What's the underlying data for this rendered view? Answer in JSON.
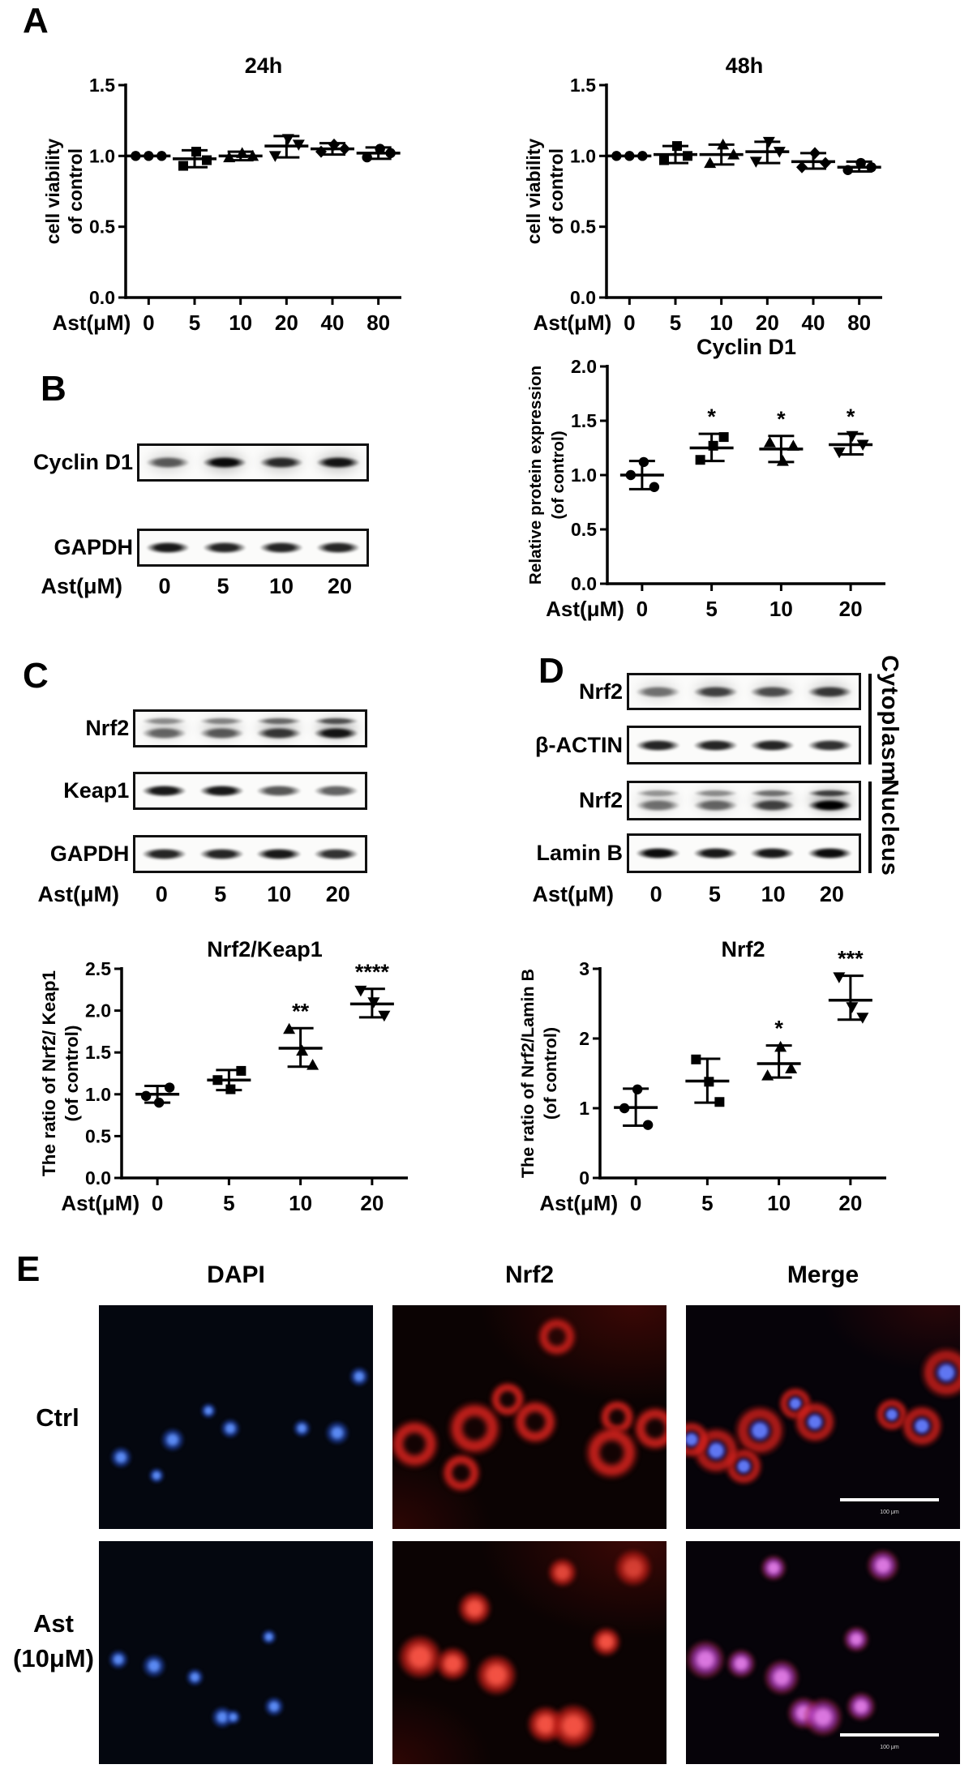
{
  "panels": {
    "a": "A",
    "b": "B",
    "c": "C",
    "d": "D",
    "e": "E"
  },
  "chart_data": [
    {
      "id": "viability-24h",
      "type": "scatter",
      "title": "24h",
      "ylabel_lines": [
        "cell viability",
        "of control"
      ],
      "x_prefix": "Ast(μM)",
      "categories": [
        "0",
        "5",
        "10",
        "20",
        "40",
        "80"
      ],
      "ylim": [
        0,
        1.5
      ],
      "yticks": [
        "0.0",
        "0.5",
        "1.0",
        "1.5"
      ],
      "grid": false,
      "legend": "none",
      "groups": [
        {
          "label": "0",
          "marker": "circle",
          "points": [
            1.0,
            1.0,
            1.0
          ],
          "mean": 1.0,
          "lo": 1.0,
          "hi": 1.0,
          "sig": ""
        },
        {
          "label": "5",
          "marker": "square",
          "points": [
            0.93,
            1.03,
            0.97
          ],
          "mean": 0.98,
          "lo": 0.92,
          "hi": 1.04,
          "sig": ""
        },
        {
          "label": "10",
          "marker": "triangle-up",
          "points": [
            0.99,
            1.02,
            1.0
          ],
          "mean": 1.0,
          "lo": 0.97,
          "hi": 1.03,
          "sig": ""
        },
        {
          "label": "20",
          "marker": "triangle-down",
          "points": [
            1.0,
            1.12,
            1.08
          ],
          "mean": 1.07,
          "lo": 0.99,
          "hi": 1.14,
          "sig": ""
        },
        {
          "label": "40",
          "marker": "diamond",
          "points": [
            1.03,
            1.08,
            1.05
          ],
          "mean": 1.05,
          "lo": 1.01,
          "hi": 1.09,
          "sig": ""
        },
        {
          "label": "80",
          "marker": "circle",
          "points": [
            0.99,
            1.05,
            1.02
          ],
          "mean": 1.02,
          "lo": 0.98,
          "hi": 1.06,
          "sig": ""
        }
      ]
    },
    {
      "id": "viability-48h",
      "type": "scatter",
      "title": "48h",
      "ylabel_lines": [
        "cell viability",
        "of control"
      ],
      "x_prefix": "Ast(μM)",
      "categories": [
        "0",
        "5",
        "10",
        "20",
        "40",
        "80"
      ],
      "ylim": [
        0,
        1.5
      ],
      "yticks": [
        "0.0",
        "0.5",
        "1.0",
        "1.5"
      ],
      "grid": false,
      "legend": "none",
      "groups": [
        {
          "label": "0",
          "marker": "circle",
          "points": [
            1.0,
            1.0,
            1.0
          ],
          "mean": 1.0,
          "lo": 1.0,
          "hi": 1.0,
          "sig": ""
        },
        {
          "label": "5",
          "marker": "square",
          "points": [
            0.97,
            1.07,
            1.0
          ],
          "mean": 1.01,
          "lo": 0.95,
          "hi": 1.07,
          "sig": ""
        },
        {
          "label": "10",
          "marker": "triangle-up",
          "points": [
            0.95,
            1.08,
            1.01
          ],
          "mean": 1.01,
          "lo": 0.94,
          "hi": 1.08,
          "sig": ""
        },
        {
          "label": "20",
          "marker": "triangle-down",
          "points": [
            0.96,
            1.1,
            1.03
          ],
          "mean": 1.03,
          "lo": 0.95,
          "hi": 1.1,
          "sig": ""
        },
        {
          "label": "40",
          "marker": "diamond",
          "points": [
            0.92,
            1.02,
            0.95
          ],
          "mean": 0.96,
          "lo": 0.91,
          "hi": 1.02,
          "sig": ""
        },
        {
          "label": "80",
          "marker": "circle",
          "points": [
            0.9,
            0.95,
            0.92
          ],
          "mean": 0.92,
          "lo": 0.89,
          "hi": 0.96,
          "sig": ""
        }
      ]
    },
    {
      "id": "cyclin-d1",
      "type": "scatter",
      "title": "Cyclin D1",
      "ylabel_lines": [
        "Relative protein expression",
        "(of control)"
      ],
      "x_prefix": "Ast(μM)",
      "categories": [
        "0",
        "5",
        "10",
        "20"
      ],
      "ylim": [
        0,
        2.0
      ],
      "yticks": [
        "0.0",
        "0.5",
        "1.0",
        "1.5",
        "2.0"
      ],
      "grid": false,
      "legend": "none",
      "groups": [
        {
          "label": "0",
          "marker": "circle",
          "points": [
            1.0,
            1.12,
            0.89
          ],
          "mean": 1.0,
          "lo": 0.87,
          "hi": 1.13,
          "sig": ""
        },
        {
          "label": "5",
          "marker": "square",
          "points": [
            1.14,
            1.27,
            1.35
          ],
          "mean": 1.25,
          "lo": 1.13,
          "hi": 1.38,
          "sig": "*"
        },
        {
          "label": "10",
          "marker": "triangle-up",
          "points": [
            1.3,
            1.13,
            1.27
          ],
          "mean": 1.24,
          "lo": 1.12,
          "hi": 1.36,
          "sig": "*"
        },
        {
          "label": "20",
          "marker": "triangle-down",
          "points": [
            1.21,
            1.36,
            1.28
          ],
          "mean": 1.28,
          "lo": 1.19,
          "hi": 1.38,
          "sig": "*"
        }
      ]
    },
    {
      "id": "nrf2-keap1-ratio",
      "type": "scatter",
      "title": "Nrf2/Keap1",
      "ylabel_lines": [
        "The ratio of Nrf2/ Keap1",
        "(of control)"
      ],
      "x_prefix": "Ast(μM)",
      "categories": [
        "0",
        "5",
        "10",
        "20"
      ],
      "ylim": [
        0,
        2.5
      ],
      "yticks": [
        "0.0",
        "0.5",
        "1.0",
        "1.5",
        "2.0",
        "2.5"
      ],
      "grid": false,
      "legend": "none",
      "groups": [
        {
          "label": "0",
          "marker": "circle",
          "points": [
            0.98,
            0.9,
            1.08
          ],
          "mean": 1.0,
          "lo": 0.9,
          "hi": 1.1,
          "sig": ""
        },
        {
          "label": "5",
          "marker": "square",
          "points": [
            1.17,
            1.06,
            1.28
          ],
          "mean": 1.17,
          "lo": 1.05,
          "hi": 1.29,
          "sig": ""
        },
        {
          "label": "10",
          "marker": "triangle-up",
          "points": [
            1.78,
            1.52,
            1.35
          ],
          "mean": 1.55,
          "lo": 1.33,
          "hi": 1.79,
          "sig": "**"
        },
        {
          "label": "20",
          "marker": "triangle-down",
          "points": [
            2.24,
            2.1,
            1.94
          ],
          "mean": 2.08,
          "lo": 1.92,
          "hi": 2.26,
          "sig": "****"
        }
      ]
    },
    {
      "id": "nrf2-nuclear",
      "type": "scatter",
      "title": "Nrf2",
      "ylabel_lines": [
        "The ratio of Nrf2/Lamin B",
        "(of control)"
      ],
      "x_prefix": "Ast(μM)",
      "categories": [
        "0",
        "5",
        "10",
        "20"
      ],
      "ylim": [
        0,
        3.0
      ],
      "yticks": [
        "0",
        "1",
        "2",
        "3"
      ],
      "grid": false,
      "legend": "none",
      "groups": [
        {
          "label": "0",
          "marker": "circle",
          "points": [
            1.0,
            1.27,
            0.76
          ],
          "mean": 1.01,
          "lo": 0.75,
          "hi": 1.28,
          "sig": ""
        },
        {
          "label": "5",
          "marker": "square",
          "points": [
            1.7,
            1.38,
            1.09
          ],
          "mean": 1.39,
          "lo": 1.08,
          "hi": 1.71,
          "sig": ""
        },
        {
          "label": "10",
          "marker": "triangle-up",
          "points": [
            1.47,
            1.88,
            1.57
          ],
          "mean": 1.64,
          "lo": 1.44,
          "hi": 1.9,
          "sig": "*"
        },
        {
          "label": "20",
          "marker": "triangle-down",
          "points": [
            2.88,
            2.45,
            2.3
          ],
          "mean": 2.55,
          "lo": 2.27,
          "hi": 2.9,
          "sig": "***"
        }
      ]
    }
  ],
  "blots": {
    "b": {
      "lane_header": "Ast(μM)",
      "lanes": [
        "0",
        "5",
        "10",
        "20"
      ],
      "items": [
        {
          "label": "Cyclin D1",
          "style": "haze",
          "intensities": [
            0.6,
            0.95,
            0.8,
            0.9
          ]
        },
        {
          "label": "GAPDH",
          "style": "solid",
          "intensities": [
            0.9,
            0.85,
            0.85,
            0.85
          ]
        }
      ]
    },
    "c": {
      "lane_header": "Ast(μM)",
      "lanes": [
        "0",
        "5",
        "10",
        "20"
      ],
      "items": [
        {
          "label": "Nrf2",
          "style": "smear",
          "intensities": [
            0.55,
            0.6,
            0.75,
            0.9
          ]
        },
        {
          "label": "Keap1",
          "style": "solid",
          "intensities": [
            0.9,
            0.9,
            0.65,
            0.6
          ]
        },
        {
          "label": "GAPDH",
          "style": "solid",
          "intensities": [
            0.85,
            0.85,
            0.9,
            0.8
          ]
        }
      ]
    },
    "d": {
      "lane_header": "Ast(μM)",
      "lanes": [
        "0",
        "5",
        "10",
        "20"
      ],
      "items": [
        {
          "label": "Nrf2",
          "style": "haze",
          "intensities": [
            0.5,
            0.7,
            0.65,
            0.75
          ]
        },
        {
          "label": "β-ACTIN",
          "style": "solid",
          "intensities": [
            0.85,
            0.85,
            0.85,
            0.8
          ]
        },
        {
          "label": "Nrf2",
          "style": "smear",
          "intensities": [
            0.5,
            0.55,
            0.7,
            1.0
          ]
        },
        {
          "label": "Lamin B",
          "style": "solid",
          "intensities": [
            0.95,
            0.9,
            0.9,
            0.95
          ]
        }
      ],
      "side_labels": [
        {
          "text": "Cytoplasm"
        },
        {
          "text": "Nucleus"
        }
      ]
    }
  },
  "panel_e": {
    "col_headers": [
      "DAPI",
      "Nrf2",
      "Merge"
    ],
    "rows": [
      {
        "label_lines": [
          "Ctrl",
          ""
        ]
      },
      {
        "label_lines": [
          "Ast",
          "(10μM)"
        ]
      }
    ],
    "scalebar_label": "100 μm",
    "images": [
      {
        "name": "ctrl-dapi",
        "type": "dapi",
        "scalebar": false,
        "cells": [
          [
            40,
            47
          ],
          [
            48,
            55
          ],
          [
            27,
            60
          ],
          [
            74,
            55
          ],
          [
            8,
            68
          ],
          [
            21,
            76
          ],
          [
            95,
            32
          ],
          [
            87,
            57
          ]
        ]
      },
      {
        "name": "ctrl-nrf2",
        "type": "nrf2-ring",
        "scalebar": false,
        "cells": [
          [
            42,
            42
          ],
          [
            52,
            52
          ],
          [
            30,
            55
          ],
          [
            25,
            75
          ],
          [
            8,
            62
          ],
          [
            82,
            50
          ],
          [
            96,
            55
          ],
          [
            80,
            66
          ],
          [
            60,
            14
          ]
        ]
      },
      {
        "name": "ctrl-merge",
        "type": "merge-ring",
        "scalebar": true,
        "cells": [
          [
            40,
            44
          ],
          [
            47,
            52
          ],
          [
            27,
            56
          ],
          [
            21,
            72
          ],
          [
            11,
            65
          ],
          [
            75,
            49
          ],
          [
            86,
            54
          ],
          [
            95,
            30
          ],
          [
            2,
            60
          ]
        ]
      },
      {
        "name": "ast-dapi",
        "type": "dapi",
        "scalebar": false,
        "cells": [
          [
            62,
            43
          ],
          [
            7,
            53
          ],
          [
            20,
            56
          ],
          [
            35,
            61
          ],
          [
            45,
            79
          ],
          [
            49,
            79
          ],
          [
            64,
            74
          ]
        ]
      },
      {
        "name": "ast-nrf2",
        "type": "nrf2-bright",
        "scalebar": false,
        "cells": [
          [
            62,
            14
          ],
          [
            88,
            12
          ],
          [
            10,
            52
          ],
          [
            22,
            55
          ],
          [
            38,
            60
          ],
          [
            78,
            45
          ],
          [
            56,
            82
          ],
          [
            66,
            83
          ],
          [
            30,
            30
          ]
        ]
      },
      {
        "name": "ast-merge",
        "type": "merge-nuclear",
        "scalebar": true,
        "cells": [
          [
            32,
            12
          ],
          [
            72,
            11
          ],
          [
            7,
            53
          ],
          [
            20,
            55
          ],
          [
            35,
            61
          ],
          [
            62,
            44
          ],
          [
            43,
            77
          ],
          [
            50,
            79
          ],
          [
            64,
            74
          ]
        ]
      }
    ]
  }
}
